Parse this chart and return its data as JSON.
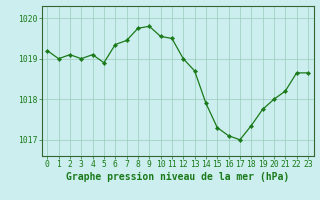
{
  "x": [
    0,
    1,
    2,
    3,
    4,
    5,
    6,
    7,
    8,
    9,
    10,
    11,
    12,
    13,
    14,
    15,
    16,
    17,
    18,
    19,
    20,
    21,
    22,
    23
  ],
  "y": [
    1019.2,
    1019.0,
    1019.1,
    1019.0,
    1019.1,
    1018.9,
    1019.35,
    1019.45,
    1019.75,
    1019.8,
    1019.55,
    1019.5,
    1019.0,
    1018.7,
    1017.9,
    1017.3,
    1017.1,
    1017.0,
    1017.35,
    1017.75,
    1018.0,
    1018.2,
    1018.65,
    1018.65
  ],
  "line_color": "#1a7a1a",
  "marker": "D",
  "marker_size": 2.2,
  "background_color": "#cceeee",
  "grid_color": "#99ccbb",
  "xlabel": "Graphe pression niveau de la mer (hPa)",
  "ylim": [
    1016.6,
    1020.3
  ],
  "yticks": [
    1017,
    1018,
    1019,
    1020
  ],
  "xticks": [
    0,
    1,
    2,
    3,
    4,
    5,
    6,
    7,
    8,
    9,
    10,
    11,
    12,
    13,
    14,
    15,
    16,
    17,
    18,
    19,
    20,
    21,
    22,
    23
  ],
  "tick_fontsize": 5.8,
  "xlabel_fontsize": 7.0,
  "spine_color": "#336633"
}
